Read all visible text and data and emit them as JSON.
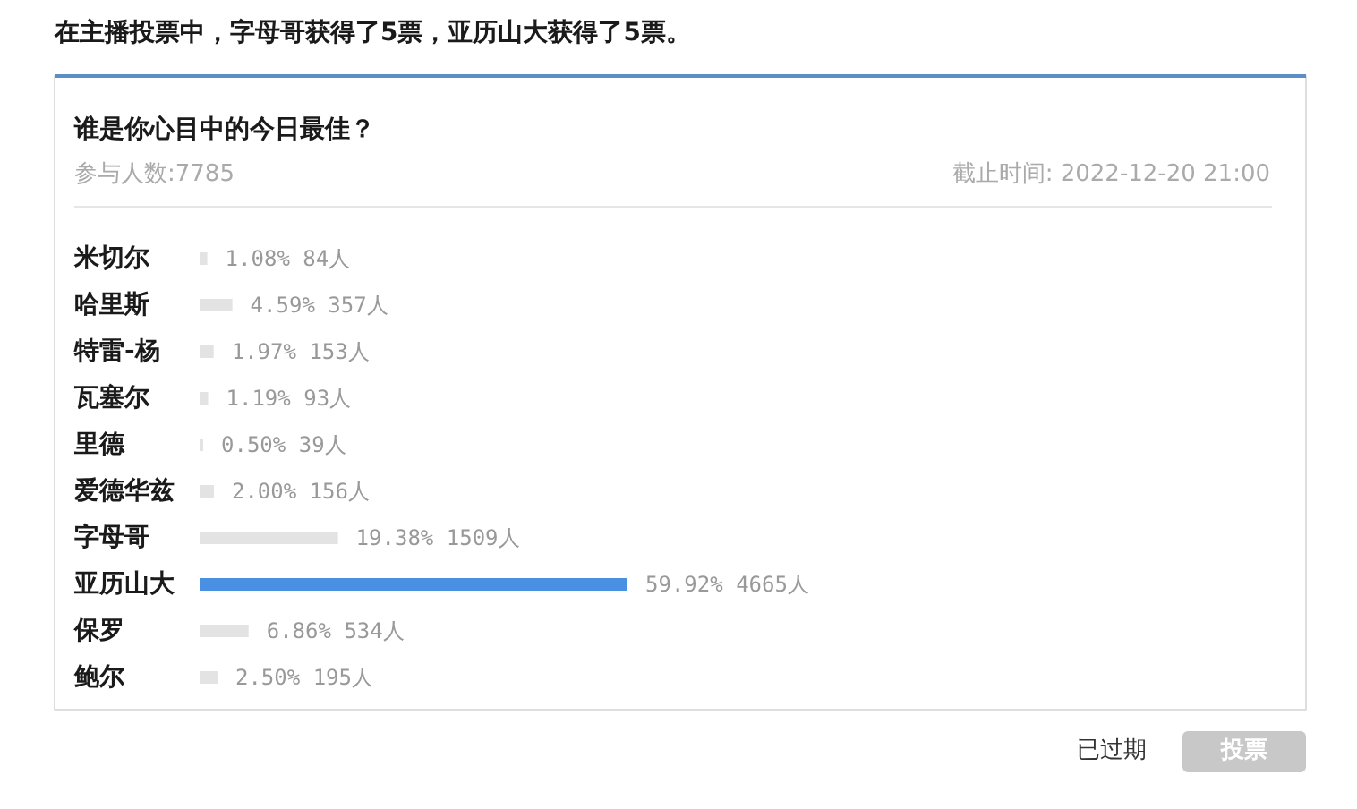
{
  "chart_data": {
    "type": "bar",
    "orientation": "horizontal",
    "title": "谁是你心目中的今日最佳？",
    "subtitle": "参与人数:7785",
    "annotations": [
      "在主播投票中，字母哥获得了5票，亚历山大获得了5票。",
      "截止时间: 2022-12-20 21:00",
      "已过期",
      "投票"
    ],
    "categories": [
      "米切尔",
      "哈里斯",
      "特雷-杨",
      "瓦塞尔",
      "里德",
      "爱德华兹",
      "字母哥",
      "亚历山大",
      "保罗",
      "鲍尔"
    ],
    "values": [
      1.08,
      4.59,
      1.97,
      1.19,
      0.5,
      2.0,
      19.38,
      59.92,
      6.86,
      2.5
    ],
    "colors": [
      "#e3e3e3",
      "#e3e3e3",
      "#e3e3e3",
      "#e3e3e3",
      "#e3e3e3",
      "#e3e3e3",
      "#e3e3e3",
      "#4a90e2",
      "#e3e3e3",
      "#e3e3e3"
    ],
    "value_labels": [
      "1.08% 84人",
      "4.59% 357人",
      "1.97% 153人",
      "1.19% 93人",
      "0.50% 39人",
      "2.00% 156人",
      "19.38% 1509人",
      "59.92% 4665人",
      "6.86% 534人",
      "2.50% 195人"
    ],
    "tick_labels": "y"
  }
}
